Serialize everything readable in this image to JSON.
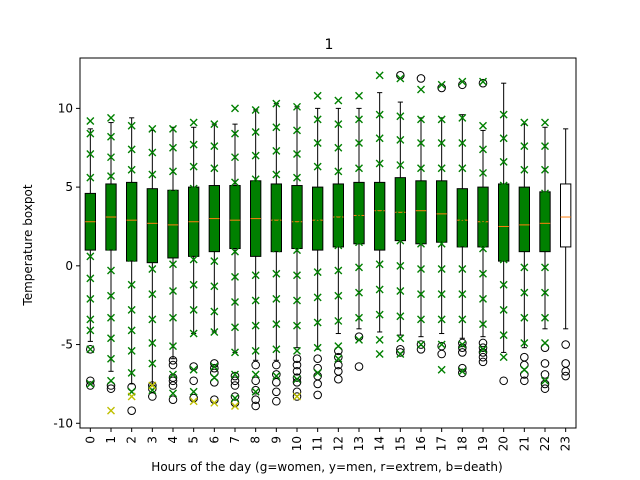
{
  "chart_data": {
    "type": "box",
    "title": "1",
    "xlabel": "Hours of the day (g=women, y=men, r=extrem, b=death)",
    "ylabel": "Temperature boxpot",
    "ylim": [
      -10.3,
      13.2
    ],
    "yticks": [
      -10,
      -5,
      0,
      5,
      10
    ],
    "categories": [
      "0",
      "1",
      "2",
      "3",
      "4",
      "5",
      "6",
      "7",
      "8",
      "9",
      "10",
      "11",
      "12",
      "13",
      "14",
      "15",
      "16",
      "17",
      "18",
      "19",
      "20",
      "21",
      "22",
      "23"
    ],
    "boxes": [
      {
        "hour": "0",
        "q1": 1.0,
        "median": 2.8,
        "q3": 4.6,
        "whisker_low": -4.8,
        "whisker_high": 8.7,
        "outliers": [
          -5.3,
          -7.3,
          -7.6
        ]
      },
      {
        "hour": "1",
        "q1": 1.0,
        "median": 3.1,
        "q3": 5.2,
        "whisker_low": -6.7,
        "whisker_high": 9.1,
        "outliers": [
          -7.6,
          -7.8
        ]
      },
      {
        "hour": "2",
        "q1": 0.3,
        "median": 2.9,
        "q3": 5.3,
        "whisker_low": -7.5,
        "whisker_high": 9.4,
        "outliers": [
          -7.7,
          -9.2
        ]
      },
      {
        "hour": "3",
        "q1": 0.2,
        "median": 2.7,
        "q3": 4.9,
        "whisker_low": -7.5,
        "whisker_high": 8.6,
        "outliers": [
          -7.6,
          -7.8,
          -8.3
        ]
      },
      {
        "hour": "4",
        "q1": 0.5,
        "median": 2.6,
        "q3": 4.8,
        "whisker_low": -5.9,
        "whisker_high": 8.8,
        "outliers": [
          -6.0,
          -6.3,
          -7.1,
          -7.3,
          -7.6,
          -8.5
        ]
      },
      {
        "hour": "5",
        "q1": 0.6,
        "median": 2.8,
        "q3": 5.0,
        "whisker_low": -4.3,
        "whisker_high": 8.8,
        "outliers": [
          -6.4,
          -7.3,
          -8.4
        ]
      },
      {
        "hour": "6",
        "q1": 0.9,
        "median": 3.0,
        "q3": 5.1,
        "whisker_low": -4.2,
        "whisker_high": 9.0,
        "outliers": [
          -6.2,
          -6.5,
          -6.8,
          -7.4,
          -8.5
        ]
      },
      {
        "hour": "7",
        "q1": 1.1,
        "median": 2.9,
        "q3": 5.1,
        "whisker_low": -5.5,
        "whisker_high": 9.0,
        "outliers": [
          -7.0,
          -7.3,
          -7.6,
          -8.3,
          -8.7
        ]
      },
      {
        "hour": "8",
        "q1": 0.6,
        "median": 3.0,
        "q3": 5.4,
        "whisker_low": -6.0,
        "whisker_high": 9.9,
        "outliers": [
          -6.3,
          -7.3,
          -7.9,
          -8.5,
          -8.9
        ]
      },
      {
        "hour": "9",
        "q1": 0.9,
        "median": 2.9,
        "q3": 5.2,
        "whisker_low": -6.0,
        "whisker_high": 10.3,
        "outliers": [
          -6.3,
          -6.9,
          -7.4,
          -8.0,
          -8.6
        ]
      },
      {
        "hour": "10",
        "q1": 1.1,
        "median": 2.8,
        "q3": 5.1,
        "whisker_low": -5.2,
        "whisker_high": 10.1,
        "outliers": [
          -5.9,
          -6.3,
          -6.7,
          -7.1,
          -7.4,
          -8.0,
          -8.3
        ]
      },
      {
        "hour": "11",
        "q1": 1.0,
        "median": 2.9,
        "q3": 5.0,
        "whisker_low": -5.3,
        "whisker_high": 10.0,
        "outliers": [
          -5.9,
          -6.5,
          -7.0,
          -7.5,
          -8.2
        ]
      },
      {
        "hour": "12",
        "q1": 1.2,
        "median": 3.1,
        "q3": 5.2,
        "whisker_low": -4.3,
        "whisker_high": 10.0,
        "outliers": [
          -5.4,
          -5.8,
          -6.3,
          -6.7,
          -7.2
        ]
      },
      {
        "hour": "13",
        "q1": 1.4,
        "median": 3.2,
        "q3": 5.3,
        "whisker_low": -4.0,
        "whisker_high": 10.0,
        "outliers": [
          -4.5,
          -6.4
        ]
      },
      {
        "hour": "14",
        "q1": 1.0,
        "median": 3.5,
        "q3": 5.3,
        "whisker_low": -4.2,
        "whisker_high": 11.0,
        "outliers": []
      },
      {
        "hour": "15",
        "q1": 1.6,
        "median": 3.4,
        "q3": 5.6,
        "whisker_low": -4.4,
        "whisker_high": 10.4,
        "outliers": [
          12.1,
          -5.3,
          -5.5
        ]
      },
      {
        "hour": "16",
        "q1": 1.4,
        "median": 3.5,
        "q3": 5.4,
        "whisker_low": -4.5,
        "whisker_high": 9.4,
        "outliers": [
          11.9,
          -5.0,
          -5.3
        ]
      },
      {
        "hour": "17",
        "q1": 1.5,
        "median": 3.3,
        "q3": 5.4,
        "whisker_low": -4.3,
        "whisker_high": 9.4,
        "outliers": [
          11.3,
          -5.1,
          -5.6
        ]
      },
      {
        "hour": "18",
        "q1": 1.2,
        "median": 2.9,
        "q3": 4.9,
        "whisker_low": -4.6,
        "whisker_high": 9.6,
        "outliers": [
          11.5,
          -4.9,
          -5.2,
          -5.5,
          -6.5,
          -6.8
        ]
      },
      {
        "hour": "19",
        "q1": 1.2,
        "median": 2.8,
        "q3": 5.0,
        "whisker_low": -4.5,
        "whisker_high": 8.6,
        "outliers": [
          11.6,
          -4.9,
          -5.2,
          -5.5,
          -5.8,
          -6.1
        ]
      },
      {
        "hour": "20",
        "q1": 0.3,
        "median": 2.5,
        "q3": 5.2,
        "whisker_low": -5.5,
        "whisker_high": 11.6,
        "outliers": [
          -7.3
        ]
      },
      {
        "hour": "21",
        "q1": 0.9,
        "median": 2.6,
        "q3": 5.0,
        "whisker_low": -5.2,
        "whisker_high": 9.0,
        "outliers": [
          -5.8,
          -6.3,
          -6.9,
          -7.3
        ]
      },
      {
        "hour": "22",
        "q1": 0.9,
        "median": 2.7,
        "q3": 4.7,
        "whisker_low": -4.0,
        "whisker_high": 8.8,
        "outliers": [
          -5.2,
          -6.2,
          -6.9,
          -7.5,
          -7.8
        ]
      },
      {
        "hour": "23",
        "q1": 1.2,
        "median": 3.1,
        "q3": 5.2,
        "whisker_low": -4.0,
        "whisker_high": 8.7,
        "outliers": [
          -5.0,
          -6.2,
          -6.7,
          -7.0
        ]
      }
    ],
    "green_markers": [
      {
        "hour": "0",
        "values": [
          9.2,
          8.4,
          7.1,
          5.6,
          4.2,
          3.1,
          2.0,
          0.6,
          -0.8,
          -2.1,
          -3.4,
          -4.1,
          -5.3,
          -7.5
        ]
      },
      {
        "hour": "1",
        "values": [
          9.4,
          8.2,
          6.9,
          5.7,
          4.0,
          2.6,
          1.2,
          -0.3,
          -1.9,
          -3.3,
          -4.6,
          -5.9,
          -7.3
        ]
      },
      {
        "hour": "2",
        "values": [
          8.9,
          7.4,
          6.1,
          4.8,
          3.3,
          1.9,
          0.5,
          -1.2,
          -2.8,
          -4.1,
          -5.4,
          -6.8,
          -8.0
        ]
      },
      {
        "hour": "3",
        "values": [
          8.7,
          7.2,
          5.8,
          4.4,
          3.0,
          1.4,
          -0.2,
          -1.8,
          -3.4,
          -4.9,
          -6.2,
          -7.9
        ]
      },
      {
        "hour": "4",
        "values": [
          8.7,
          7.5,
          6.0,
          4.6,
          3.2,
          1.7,
          0.1,
          -1.6,
          -3.3,
          -5.1,
          -6.9,
          -8.1
        ]
      },
      {
        "hour": "5",
        "values": [
          9.1,
          7.7,
          6.3,
          4.9,
          3.5,
          2.0,
          0.4,
          -1.2,
          -2.8,
          -4.3,
          -6.6,
          -8.0
        ]
      },
      {
        "hour": "6",
        "values": [
          9.0,
          7.6,
          6.2,
          4.8,
          3.3,
          1.8,
          0.3,
          -1.3,
          -2.9,
          -4.2,
          -6.4,
          -7.1
        ]
      },
      {
        "hour": "7",
        "values": [
          10.0,
          8.4,
          6.9,
          5.3,
          3.9,
          2.4,
          0.9,
          -0.7,
          -2.3,
          -3.9,
          -5.5,
          -6.9,
          -8.4
        ]
      },
      {
        "hour": "8",
        "values": [
          9.9,
          8.5,
          7.0,
          5.5,
          4.0,
          2.5,
          1.0,
          -0.6,
          -2.2,
          -3.8,
          -5.4,
          -6.9,
          -8.0
        ]
      },
      {
        "hour": "9",
        "values": [
          10.3,
          8.8,
          7.3,
          5.8,
          4.3,
          2.7,
          1.1,
          -0.5,
          -2.1,
          -3.7,
          -5.3,
          -7.0
        ]
      },
      {
        "hour": "10",
        "values": [
          10.1,
          8.6,
          7.1,
          5.6,
          4.1,
          2.6,
          1.0,
          -0.6,
          -2.2,
          -3.8,
          -5.4,
          -7.2
        ]
      },
      {
        "hour": "11",
        "values": [
          10.8,
          9.3,
          7.8,
          6.3,
          4.6,
          3.0,
          1.3,
          -0.4,
          -2.0,
          -3.6,
          -5.2,
          -6.8
        ]
      },
      {
        "hour": "12",
        "values": [
          10.5,
          9.0,
          7.5,
          6.0,
          4.5,
          2.9,
          1.3,
          -0.3,
          -1.9,
          -3.5,
          -5.1,
          -5.9
        ]
      },
      {
        "hour": "13",
        "values": [
          10.8,
          9.3,
          7.8,
          6.2,
          4.7,
          3.1,
          1.5,
          -0.1,
          -1.7,
          -3.3,
          -4.7
        ]
      },
      {
        "hour": "14",
        "values": [
          12.1,
          9.6,
          8.1,
          6.5,
          4.9,
          3.3,
          1.7,
          0.1,
          -1.5,
          -3.1,
          -4.7,
          -5.6
        ]
      },
      {
        "hour": "15",
        "values": [
          11.9,
          9.5,
          8.0,
          6.4,
          4.8,
          3.2,
          1.6,
          0.0,
          -1.6,
          -3.2,
          -4.6,
          -5.6
        ]
      },
      {
        "hour": "16",
        "values": [
          11.2,
          9.3,
          7.8,
          6.2,
          4.6,
          3.0,
          1.4,
          -0.2,
          -1.8,
          -3.4,
          -5.0
        ]
      },
      {
        "hour": "17",
        "values": [
          11.5,
          9.3,
          7.8,
          6.2,
          4.6,
          3.0,
          1.4,
          -0.2,
          -1.8,
          -3.4,
          -5.0,
          -6.6
        ]
      },
      {
        "hour": "18",
        "values": [
          11.7,
          9.4,
          7.8,
          6.2,
          4.6,
          3.0,
          1.4,
          -0.2,
          -1.8,
          -3.4,
          -5.0,
          -6.7
        ]
      },
      {
        "hour": "19",
        "values": [
          11.7,
          8.9,
          7.4,
          5.9,
          4.3,
          2.7,
          1.1,
          -0.5,
          -2.1,
          -3.7,
          -5.3
        ]
      },
      {
        "hour": "20",
        "values": [
          9.6,
          8.1,
          6.6,
          5.1,
          3.6,
          2.0,
          0.4,
          -1.2,
          -2.8,
          -4.4,
          -5.8
        ]
      },
      {
        "hour": "21",
        "values": [
          9.1,
          7.6,
          6.1,
          4.6,
          3.1,
          1.5,
          -0.1,
          -1.7,
          -3.3,
          -4.9,
          -6.6
        ]
      },
      {
        "hour": "22",
        "values": [
          9.1,
          7.6,
          6.1,
          4.6,
          3.1,
          1.5,
          -0.1,
          -1.7,
          -3.3,
          -4.9,
          -7.3
        ]
      }
    ],
    "yellow_markers": [
      {
        "hour": "1",
        "values": [
          -9.2
        ]
      },
      {
        "hour": "2",
        "values": [
          -8.3
        ]
      },
      {
        "hour": "3",
        "values": [
          -7.6
        ]
      },
      {
        "hour": "5",
        "values": [
          -8.6
        ]
      },
      {
        "hour": "6",
        "values": [
          -8.7
        ]
      },
      {
        "hour": "7",
        "values": [
          -8.9
        ]
      },
      {
        "hour": "10",
        "values": [
          -8.3
        ]
      }
    ],
    "colors": {
      "box_fill": "#008000",
      "box_edge": "#000000",
      "median": "#ff7f0e",
      "green_marker": "#008000",
      "yellow_marker": "#bfbf00",
      "outlier": "#000000",
      "last_box_fill": "#ffffff"
    }
  }
}
